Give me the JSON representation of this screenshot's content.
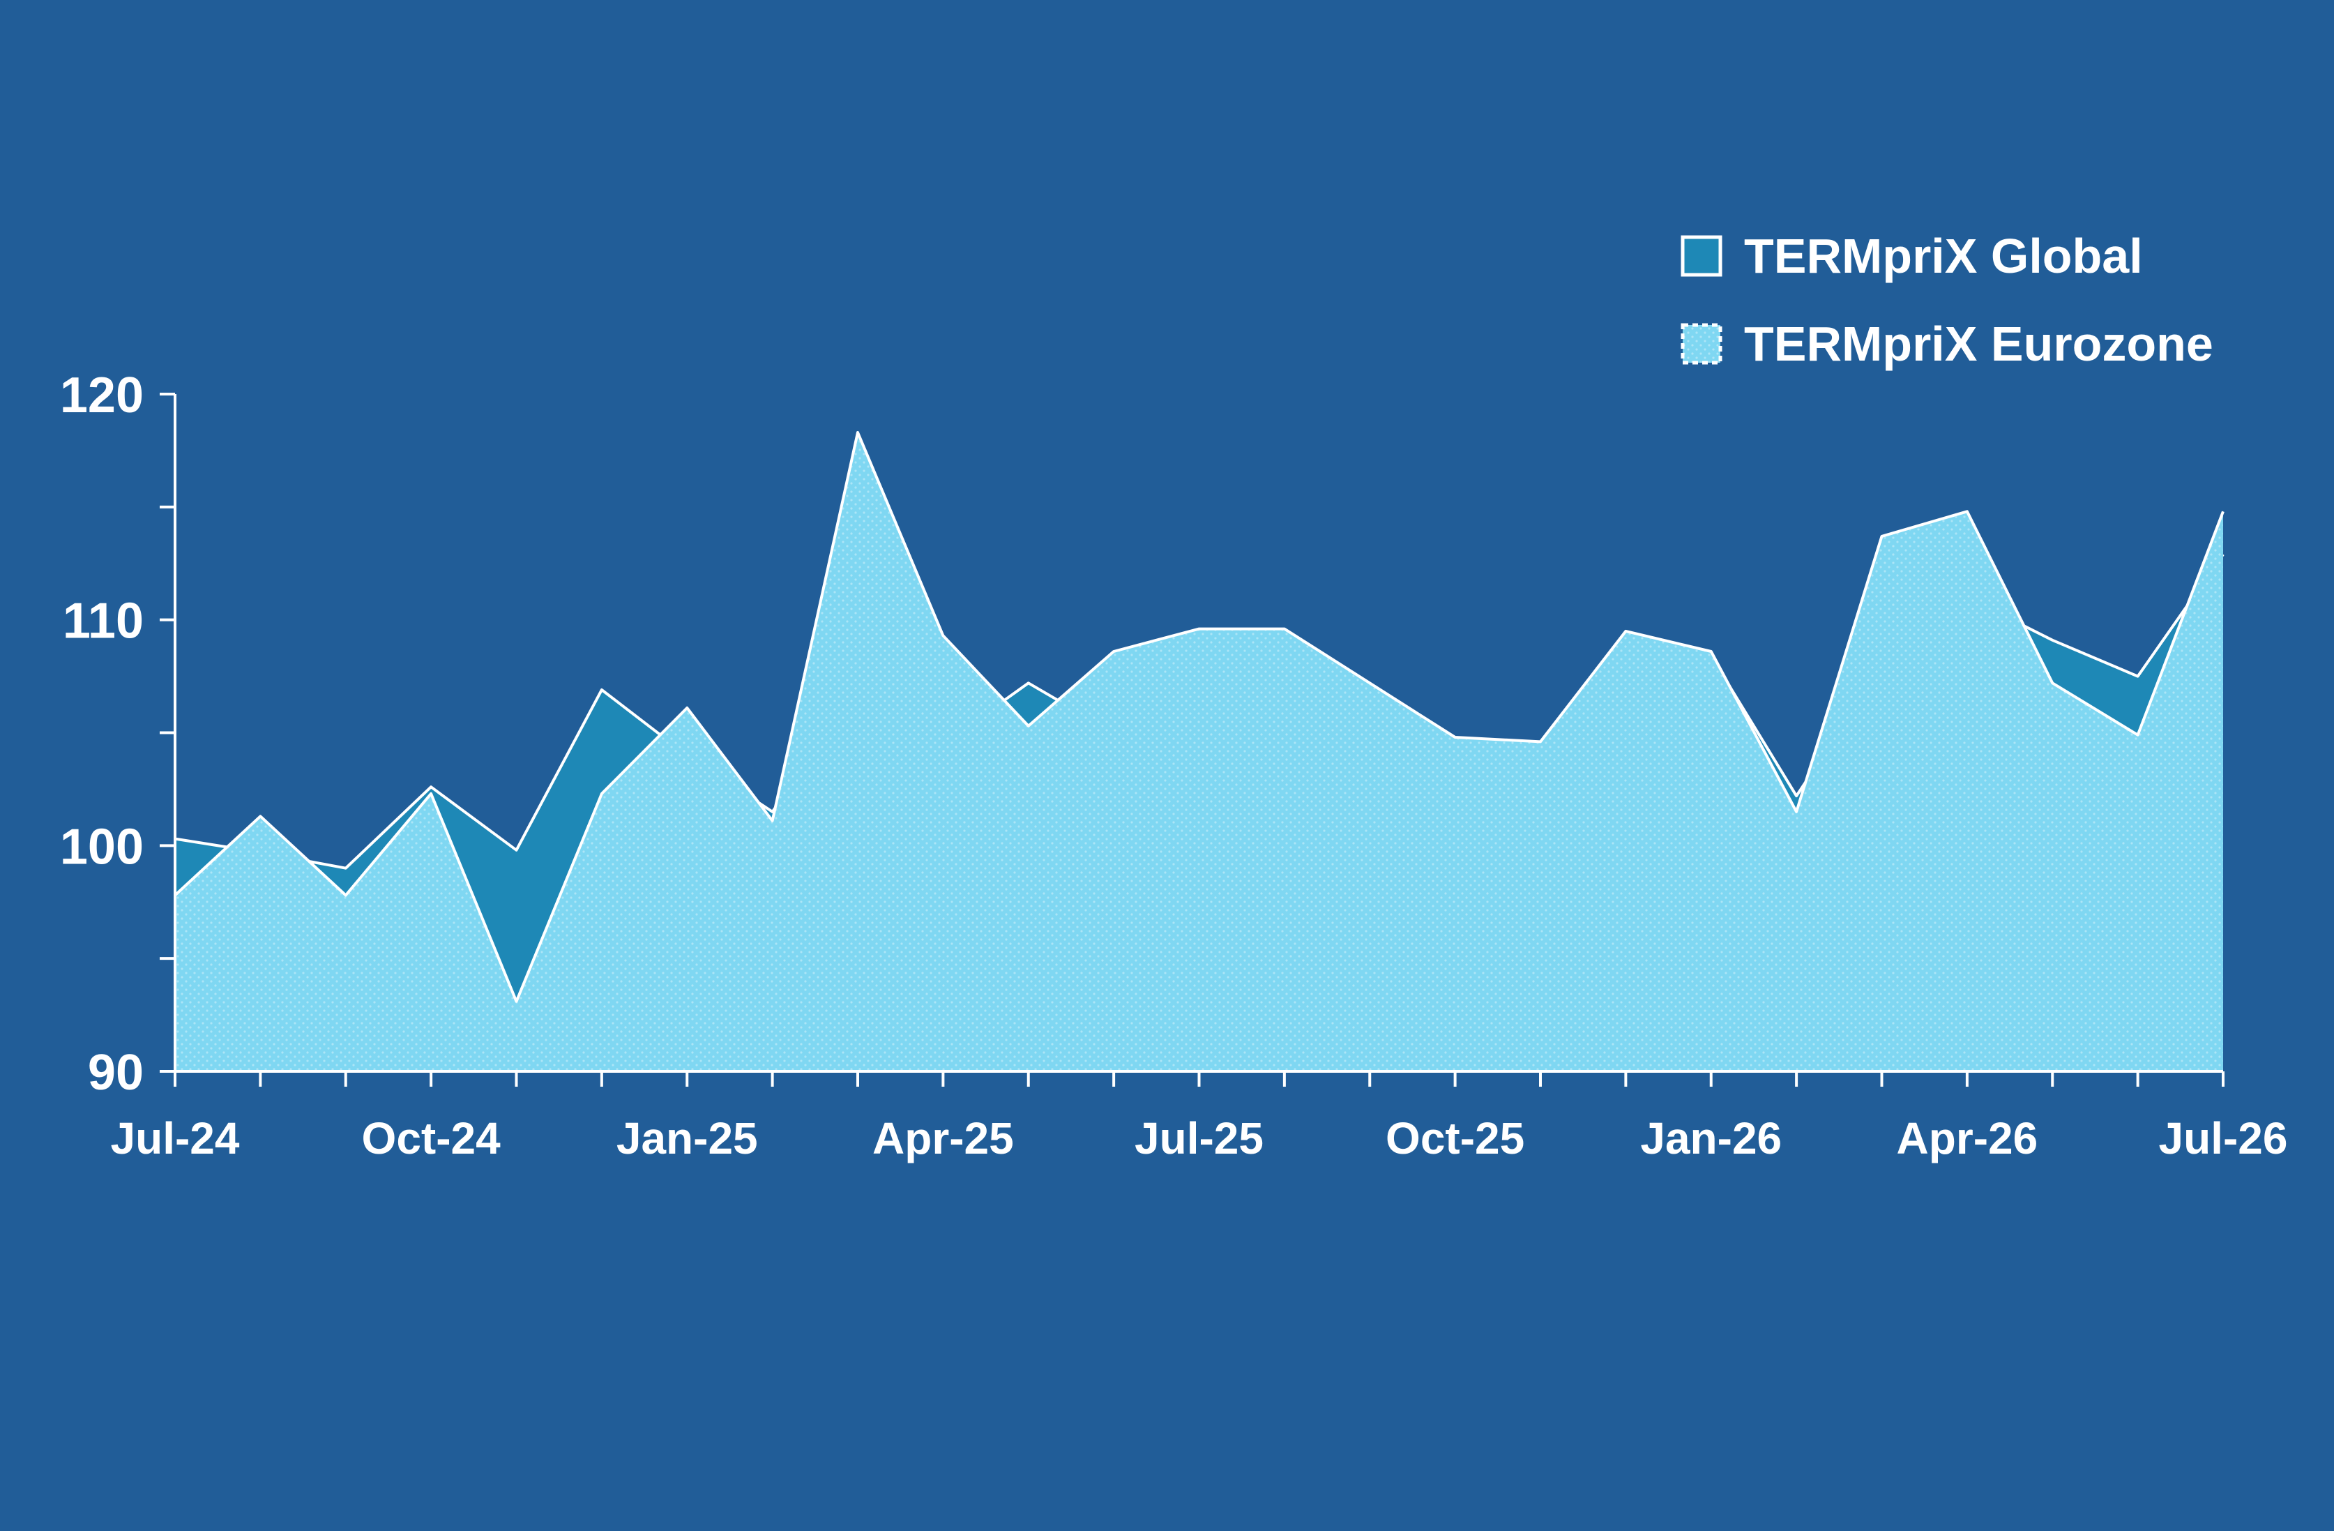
{
  "chart_data": {
    "type": "area",
    "x": [
      "Jul-24",
      "Aug-24",
      "Sep-24",
      "Oct-24",
      "Nov-24",
      "Dec-24",
      "Jan-25",
      "Feb-25",
      "Mar-25",
      "Apr-25",
      "May-25",
      "Jun-25",
      "Jul-25",
      "Aug-25",
      "Sep-25",
      "Oct-25",
      "Nov-25",
      "Dec-25",
      "Jan-26",
      "Feb-26",
      "Mar-26",
      "Apr-26",
      "May-26",
      "Jun-26",
      "Jul-26"
    ],
    "xticks": [
      "Jul-24",
      "Oct-24",
      "Jan-25",
      "Apr-25",
      "Jul-25",
      "Oct-25",
      "Jan-26",
      "Apr-26",
      "Jul-26"
    ],
    "ylim": [
      90,
      120
    ],
    "yticks": [
      90,
      100,
      110,
      120
    ],
    "series": [
      {
        "name": "TERMpriX Global",
        "color": "#1e88b6",
        "values": [
          100.3,
          99.7,
          99.0,
          102.6,
          99.8,
          106.9,
          104.0,
          101.5,
          106.7,
          104.5,
          107.2,
          105.0,
          106.1,
          104.0,
          104.4,
          102.6,
          102.9,
          107.4,
          108.4,
          102.2,
          107.9,
          111.0,
          109.1,
          107.5,
          112.9
        ]
      },
      {
        "name": "TERMpriX Eurozone",
        "color": "#7fd7f2",
        "values": [
          97.8,
          101.3,
          97.8,
          102.3,
          93.1,
          102.3,
          106.1,
          101.1,
          118.3,
          109.3,
          105.3,
          108.6,
          109.6,
          109.6,
          107.2,
          104.8,
          104.6,
          109.5,
          108.6,
          101.5,
          113.7,
          114.8,
          107.2,
          104.9,
          114.8
        ]
      }
    ],
    "legend": "top-right"
  }
}
